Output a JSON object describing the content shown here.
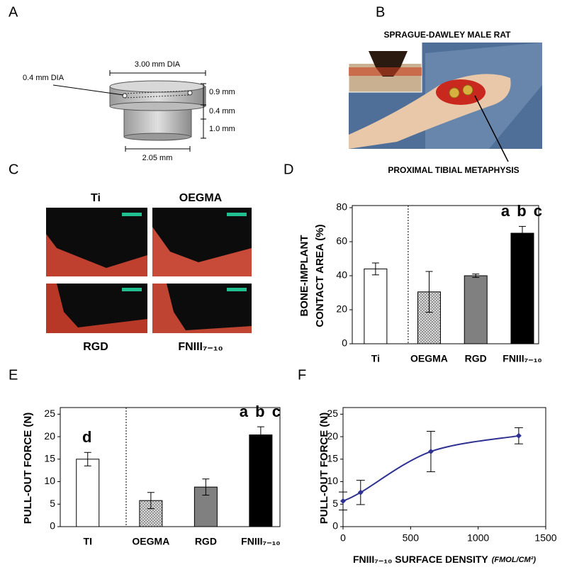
{
  "panel_labels": [
    "A",
    "B",
    "C",
    "D",
    "E",
    "F"
  ],
  "implant_diagram": {
    "top_diameter": "3.00 mm DIA",
    "channel_diameter": "0.4 mm DIA",
    "top_height": "0.9 mm",
    "step_height": "0.4 mm",
    "base_height": "1.0 mm",
    "base_diameter": "2.05 mm"
  },
  "surgery_photo": {
    "title": "SPRAGUE-DAWLEY MALE RAT",
    "site": "PROXIMAL TIBIAL METAPHYSIS"
  },
  "histology": {
    "labels": [
      "Ti",
      "OEGMA",
      "RGD",
      "FNIII₇₋₁₀"
    ]
  },
  "chart_data": [
    {
      "type": "bar",
      "ylabel": [
        "BONE-IMPLANT",
        "CONTACT AREA (%)"
      ],
      "categories": [
        "Ti",
        "OEGMA",
        "RGD",
        "FNIII₇₋₁₀"
      ],
      "values": [
        44,
        30.5,
        40,
        65
      ],
      "errors": [
        3.5,
        12,
        1,
        4
      ],
      "colors": [
        "#ffffff",
        "#d8d8d8",
        "#808080",
        "#000000"
      ],
      "hatch": [
        false,
        true,
        false,
        false
      ],
      "annotations": [
        null,
        null,
        null,
        "a b c"
      ],
      "ylim": [
        0,
        80
      ],
      "yticks": [
        0,
        20,
        40,
        60,
        80
      ]
    },
    {
      "type": "bar",
      "ylabel": [
        "PULL-OUT FORCE (N)"
      ],
      "categories": [
        "TI",
        "OEGMA",
        "RGD",
        "FNIII₇₋₁₀"
      ],
      "values": [
        15,
        5.8,
        8.8,
        20.4
      ],
      "errors": [
        1.5,
        1.8,
        1.8,
        1.8
      ],
      "colors": [
        "#ffffff",
        "#d8d8d8",
        "#808080",
        "#000000"
      ],
      "hatch": [
        false,
        true,
        false,
        false
      ],
      "annotations": [
        "d",
        null,
        null,
        "a b c"
      ],
      "ylim": [
        0,
        26
      ],
      "yticks": [
        0,
        5,
        10,
        15,
        20,
        25
      ]
    },
    {
      "type": "line",
      "ylabel": [
        "PULL-OUT FORCE (N)"
      ],
      "xlabel": "FNIII₇₋₁₀ SURFACE DENSITY",
      "xlabel_unit": "(FMOL/CM²)",
      "x": [
        0,
        130,
        650,
        1300
      ],
      "values": [
        5.7,
        7.6,
        16.7,
        20.2
      ],
      "errors": [
        2,
        2.7,
        4.5,
        1.8
      ],
      "color": "#2e3192",
      "xlim": [
        0,
        1500
      ],
      "xticks": [
        0,
        500,
        1000,
        1500
      ],
      "ylim": [
        0,
        26
      ],
      "yticks": [
        0,
        5,
        10,
        15,
        20,
        25
      ]
    }
  ]
}
